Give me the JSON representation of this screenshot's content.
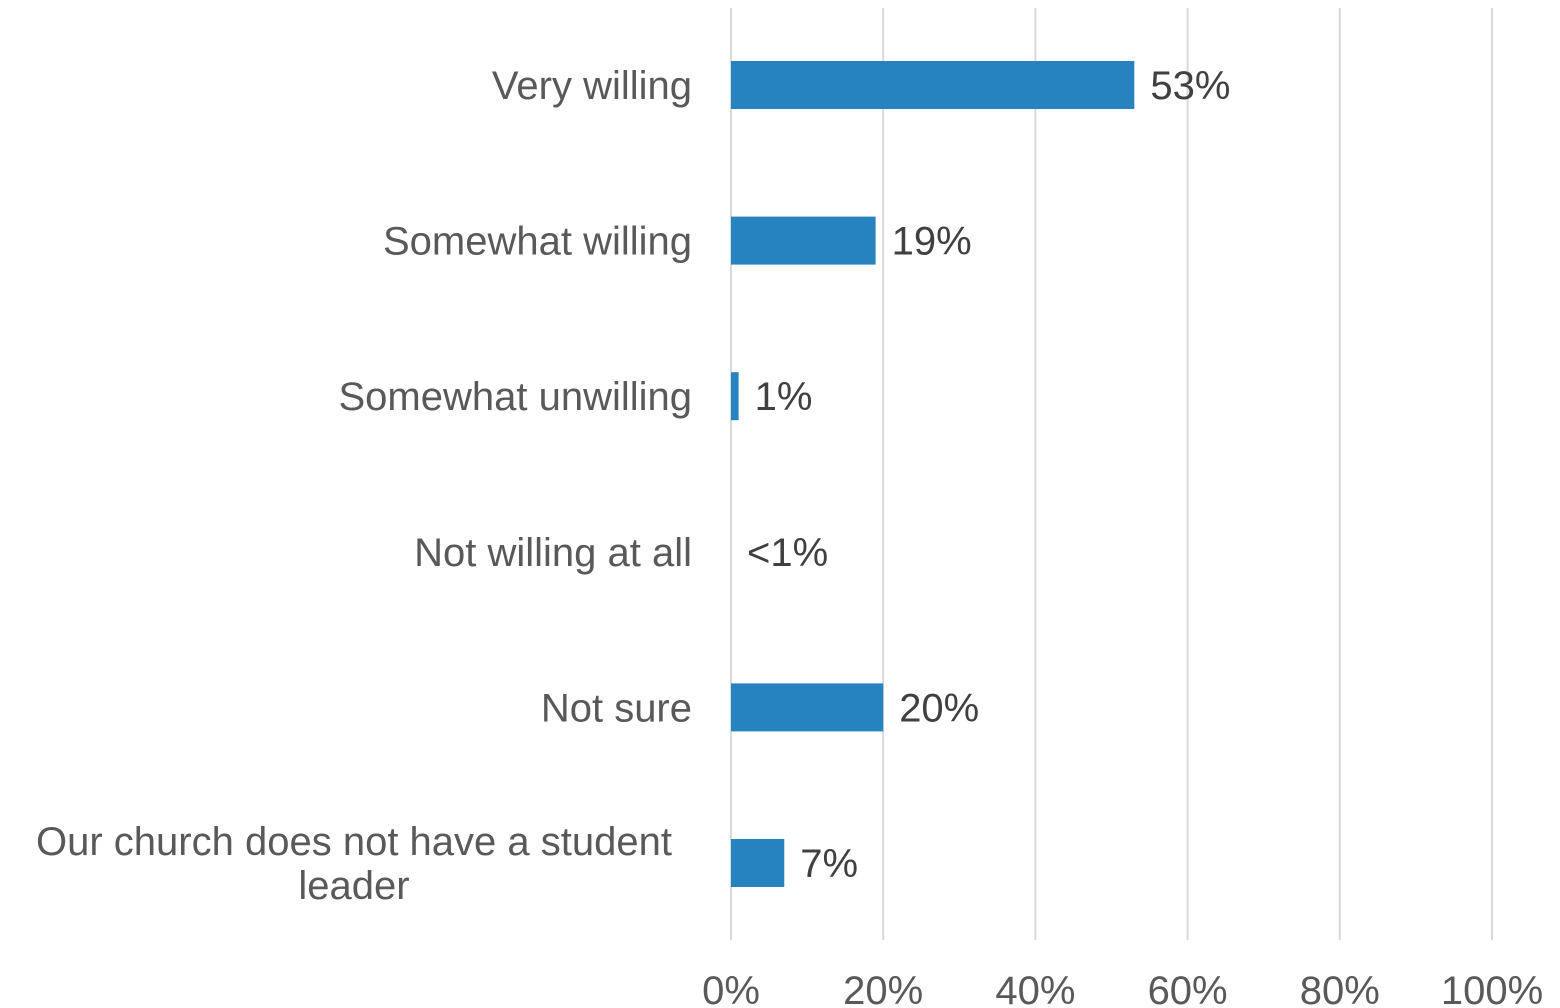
{
  "chart_data": {
    "type": "bar",
    "orientation": "horizontal",
    "categories": [
      "Very willing",
      "Somewhat willing",
      "Somewhat unwilling",
      "Not willing at all",
      "Not sure",
      "Our church does not have a student leader"
    ],
    "category_label_lines": [
      [
        "Very willing"
      ],
      [
        "Somewhat willing"
      ],
      [
        "Somewhat unwilling"
      ],
      [
        "Not willing at all"
      ],
      [
        "Not sure"
      ],
      [
        "Our church does not have a student",
        "leader"
      ]
    ],
    "values": [
      53,
      19,
      1,
      0.3,
      20,
      7
    ],
    "data_labels": [
      "53%",
      "19%",
      "1%",
      "<1%",
      "20%",
      "7%"
    ],
    "xlim": [
      0,
      100
    ],
    "x_ticks": [
      0,
      20,
      40,
      60,
      80,
      100
    ],
    "x_tick_labels": [
      "0%",
      "20%",
      "40%",
      "60%",
      "80%",
      "100%"
    ],
    "title": "",
    "xlabel": "",
    "ylabel": "",
    "grid": "vertical",
    "legend": "none",
    "bar_color": "#2683C0",
    "grid_color": "#D9D9D9",
    "label_color": "#595959",
    "data_label_color": "#404040"
  }
}
